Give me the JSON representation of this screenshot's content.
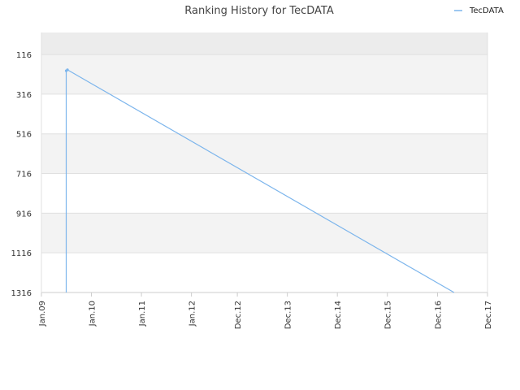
{
  "chart_data": {
    "type": "line",
    "title": "Ranking History for TecDATA",
    "xlabel": "",
    "ylabel": "",
    "x_ticks": [
      "Jan.09",
      "Jan.10",
      "Jan.11",
      "Jan.12",
      "Dec.12",
      "Dec.13",
      "Dec.14",
      "Dec.15",
      "Dec.16",
      "Dec.17"
    ],
    "x_tick_dates": [
      "2009-01-01",
      "2010-01-01",
      "2011-01-01",
      "2012-01-01",
      "2012-12-01",
      "2013-12-01",
      "2014-12-01",
      "2015-12-01",
      "2016-12-01",
      "2017-12-01"
    ],
    "y_ticks": [
      116,
      316,
      516,
      716,
      916,
      1116,
      1316
    ],
    "ylim": [
      1316,
      5
    ],
    "y_reversed": true,
    "grid": true,
    "legend_position": "top-right",
    "series": [
      {
        "name": "TecDATA",
        "color": "#7cb5ec",
        "points": [
          {
            "x": "2009-07-01",
            "y": 1316
          },
          {
            "x": "2009-07-01",
            "y": 198
          },
          {
            "x": "2009-07-10",
            "y": 193
          },
          {
            "x": "2017-04-01",
            "y": 1316
          }
        ]
      }
    ]
  },
  "colors": {
    "band_light": "#f3f3f3",
    "band_top": "#ececec",
    "gridline": "#e0e0e0",
    "axis": "#cccccc"
  }
}
